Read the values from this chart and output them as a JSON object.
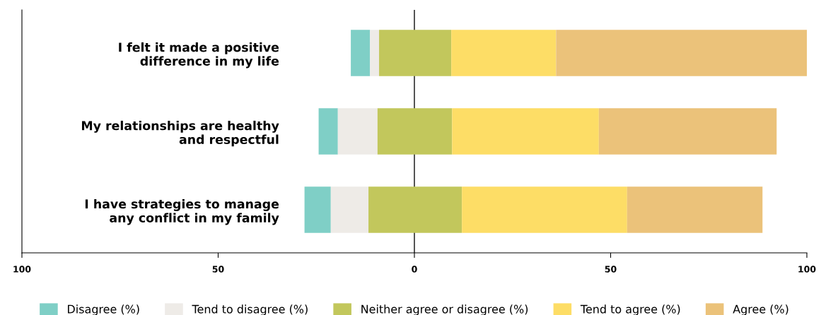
{
  "chart_data": {
    "type": "bar",
    "orientation": "horizontal",
    "categories": [
      "I felt it made a positive\ndifference in my life",
      "My relationships are healthy\nand respectful",
      "I have strategies to manage\nany conflict in my family"
    ],
    "series": [
      {
        "name": "Disagree (%)",
        "color": "#7fcfc6",
        "base": [
          -16.2,
          -24.4,
          -28.0
        ],
        "values": [
          4.9,
          4.9,
          6.7
        ]
      },
      {
        "name": "Tend to disagree (%)",
        "color": "#eeebe7",
        "base": [
          -11.3,
          -19.5,
          -21.3
        ],
        "values": [
          2.3,
          10.1,
          9.6
        ]
      },
      {
        "name": "Neither agree or disagree (%)",
        "color": "#c2c75c",
        "base": [
          -9.0,
          -9.4,
          -11.7
        ],
        "values": [
          18.4,
          19.0,
          23.8
        ]
      },
      {
        "name": "Tend to agree (%)",
        "color": "#fddd66",
        "base": [
          9.4,
          9.6,
          12.1
        ],
        "values": [
          26.7,
          37.4,
          42.1
        ]
      },
      {
        "name": "Agree (%)",
        "color": "#ebc27a",
        "base": [
          36.1,
          47.0,
          54.2
        ],
        "values": [
          63.9,
          45.3,
          34.5
        ]
      }
    ],
    "xlim": [
      -100,
      100
    ],
    "xticks": [
      {
        "value": -100,
        "label": "100"
      },
      {
        "value": -50,
        "label": "50"
      },
      0,
      50,
      100
    ],
    "ref_lines": [
      {
        "axis": "x",
        "value": 0,
        "color": "#333333"
      }
    ],
    "grid": false,
    "legend": "bottom"
  }
}
